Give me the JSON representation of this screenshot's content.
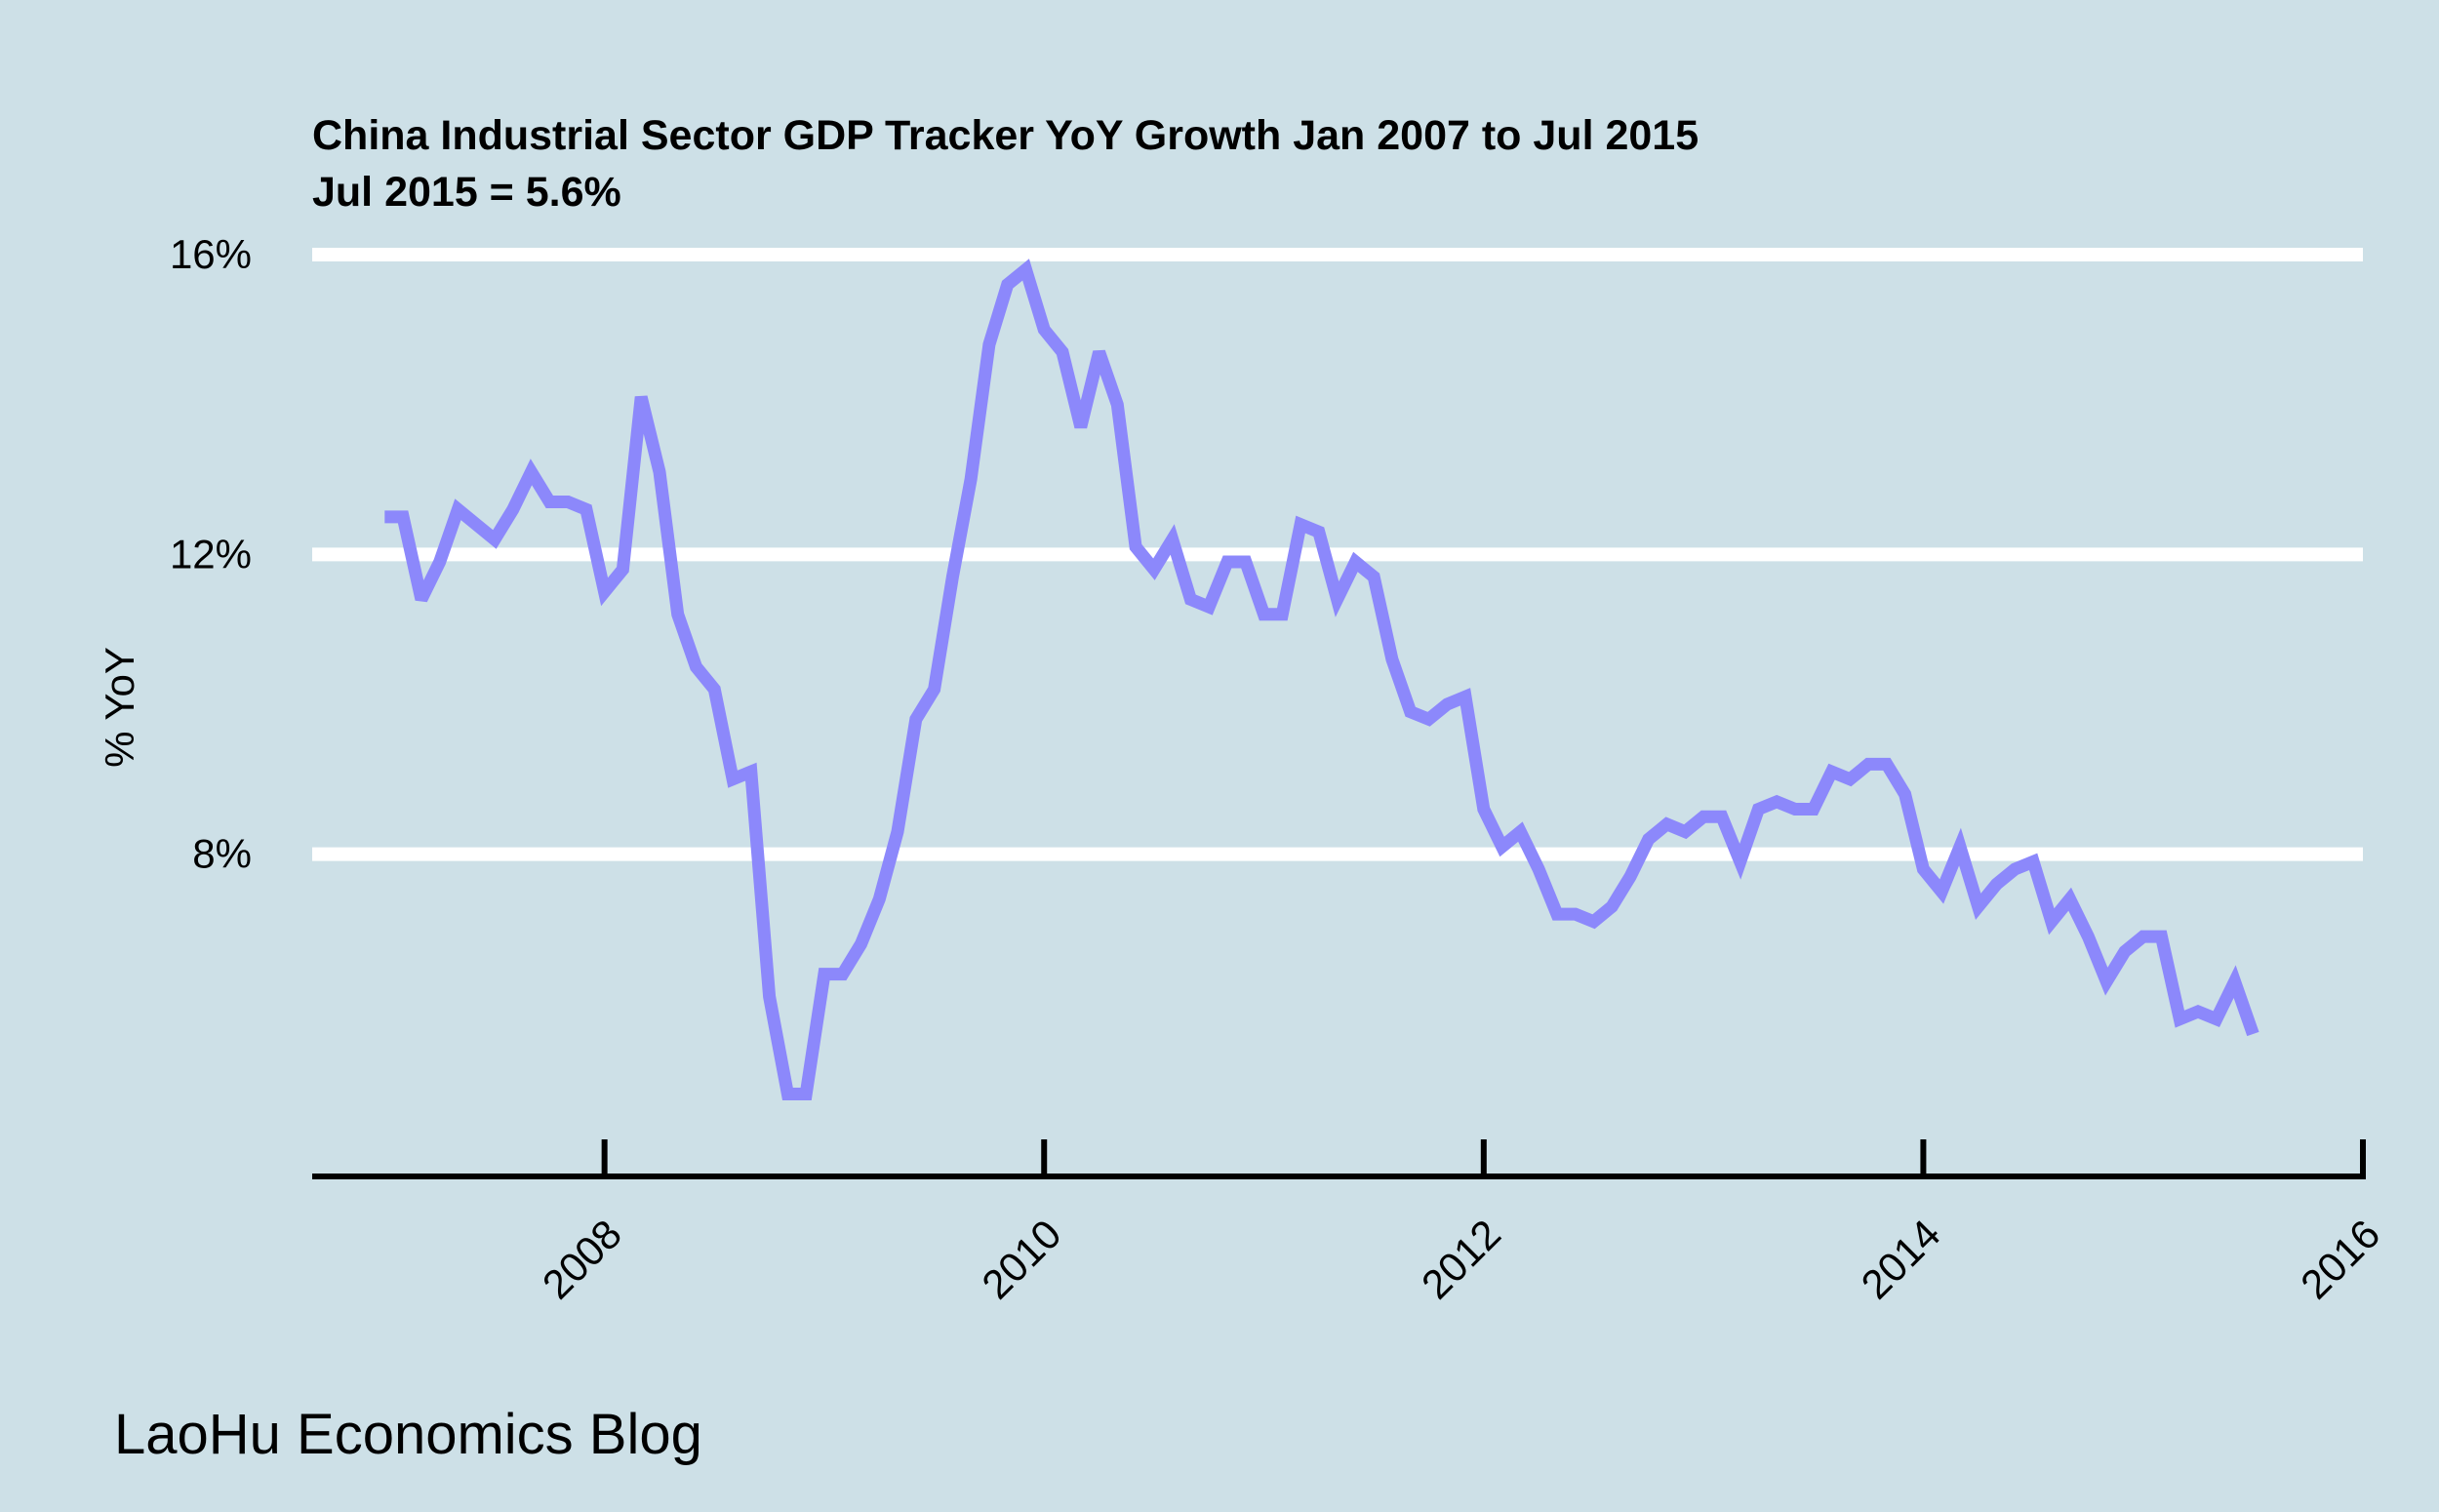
{
  "chart_data": {
    "type": "line",
    "title": "China Industrial Sector GDP Tracker YoY Growth Jan 2007 to Jul 2015",
    "subtitle": "Jul 2015 = 5.6%",
    "xlabel": "",
    "ylabel": "% YoY",
    "y_ticks": [
      8,
      12,
      16
    ],
    "y_tick_labels": [
      "8%",
      "12%",
      "16%"
    ],
    "x_ticks": [
      2008,
      2010,
      2012,
      2014,
      2016
    ],
    "x_tick_labels": [
      "2008",
      "2010",
      "2012",
      "2014",
      "2016"
    ],
    "xlim": [
      2006.67,
      2016
    ],
    "ylim": [
      3.7,
      16
    ],
    "grid": "horizontal",
    "legend": "none",
    "colors": {
      "background": "#cde0e7",
      "line": "#8c88fb",
      "grid": "#ffffff",
      "axis": "#000000"
    },
    "series": [
      {
        "x": [
          "2007-01",
          "2007-02",
          "2007-03",
          "2007-04",
          "2007-05",
          "2007-06",
          "2007-07",
          "2007-08",
          "2007-09",
          "2007-10",
          "2007-11",
          "2007-12",
          "2008-01",
          "2008-02",
          "2008-03",
          "2008-04",
          "2008-05",
          "2008-06",
          "2008-07",
          "2008-08",
          "2008-09",
          "2008-10",
          "2008-11",
          "2008-12",
          "2009-01",
          "2009-02",
          "2009-03",
          "2009-04",
          "2009-05",
          "2009-06",
          "2009-07",
          "2009-08",
          "2009-09",
          "2009-10",
          "2009-11",
          "2009-12",
          "2010-01",
          "2010-02",
          "2010-03",
          "2010-04",
          "2010-05",
          "2010-06",
          "2010-07",
          "2010-08",
          "2010-09",
          "2010-10",
          "2010-11",
          "2010-12",
          "2011-01",
          "2011-02",
          "2011-03",
          "2011-04",
          "2011-05",
          "2011-06",
          "2011-07",
          "2011-08",
          "2011-09",
          "2011-10",
          "2011-11",
          "2011-12",
          "2012-01",
          "2012-02",
          "2012-03",
          "2012-04",
          "2012-05",
          "2012-06",
          "2012-07",
          "2012-08",
          "2012-09",
          "2012-10",
          "2012-11",
          "2012-12",
          "2013-01",
          "2013-02",
          "2013-03",
          "2013-04",
          "2013-05",
          "2013-06",
          "2013-07",
          "2013-08",
          "2013-09",
          "2013-10",
          "2013-11",
          "2013-12",
          "2014-01",
          "2014-02",
          "2014-03",
          "2014-04",
          "2014-05",
          "2014-06",
          "2014-07",
          "2014-08",
          "2014-09",
          "2014-10",
          "2014-11",
          "2014-12",
          "2015-01",
          "2015-02",
          "2015-03",
          "2015-04",
          "2015-05",
          "2015-06",
          "2015-07"
        ],
        "values": [
          12.5,
          12.5,
          11.4,
          11.9,
          12.6,
          12.4,
          12.2,
          12.6,
          13.1,
          12.7,
          12.7,
          12.6,
          11.5,
          11.8,
          14.1,
          13.1,
          11.2,
          10.5,
          10.2,
          9.0,
          9.1,
          6.1,
          4.8,
          4.8,
          6.4,
          6.4,
          6.8,
          7.4,
          8.3,
          9.8,
          10.2,
          11.7,
          13.0,
          14.8,
          15.6,
          15.8,
          15.0,
          14.7,
          13.7,
          14.7,
          14.0,
          12.1,
          11.8,
          12.2,
          11.4,
          11.3,
          11.9,
          11.9,
          11.2,
          11.2,
          12.4,
          12.3,
          11.4,
          11.9,
          11.7,
          10.6,
          9.9,
          9.8,
          10.0,
          10.1,
          8.6,
          8.1,
          8.3,
          7.8,
          7.2,
          7.2,
          7.1,
          7.3,
          7.7,
          8.2,
          8.4,
          8.3,
          8.5,
          8.5,
          7.9,
          8.6,
          8.7,
          8.6,
          8.6,
          9.1,
          9.0,
          9.2,
          9.2,
          8.8,
          7.8,
          7.5,
          8.1,
          7.3,
          7.6,
          7.8,
          7.9,
          7.1,
          7.4,
          6.9,
          6.3,
          6.7,
          6.9,
          6.9,
          5.8,
          5.9,
          5.8,
          6.3,
          5.6
        ]
      }
    ]
  },
  "footer": {
    "text": "LaoHu Economics Blog"
  }
}
